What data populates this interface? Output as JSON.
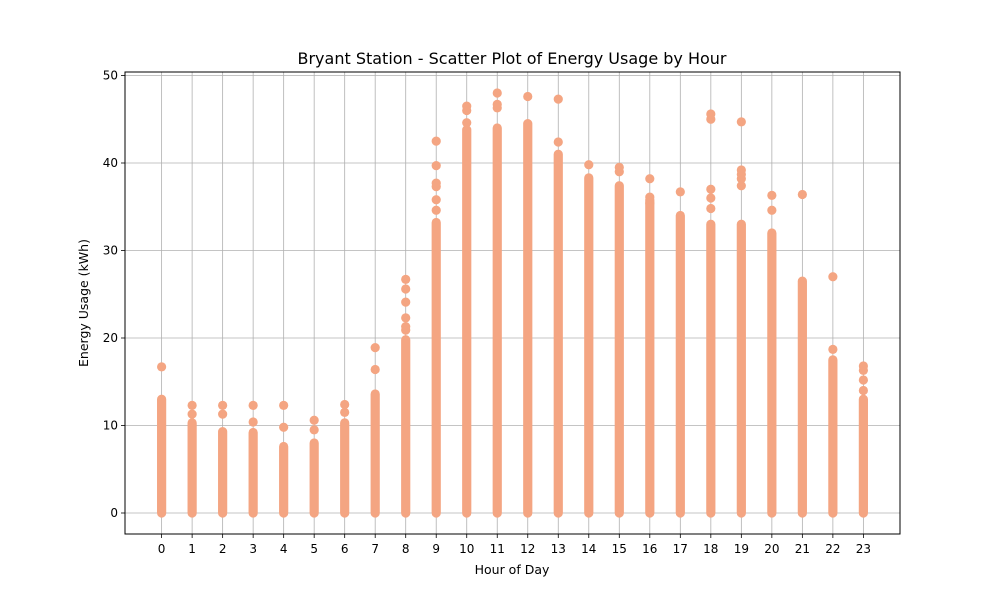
{
  "chart_data": {
    "type": "scatter",
    "title": "Bryant Station - Scatter Plot of Energy Usage by Hour",
    "xlabel": "Hour of Day",
    "ylabel": "Energy Usage (kWh)",
    "xlim": [
      -1.2,
      24.2
    ],
    "ylim": [
      -2.4,
      50.4
    ],
    "grid": true,
    "marker_color": "#f4a582",
    "x_ticks": [
      "0",
      "1",
      "2",
      "3",
      "4",
      "5",
      "6",
      "7",
      "8",
      "9",
      "10",
      "11",
      "12",
      "13",
      "14",
      "15",
      "16",
      "17",
      "18",
      "19",
      "20",
      "21",
      "22",
      "23"
    ],
    "y_ticks": [
      "0",
      "10",
      "20",
      "30",
      "40",
      "50"
    ],
    "series": [
      {
        "hourly_max": [
          16.7,
          12.3,
          12.3,
          12.3,
          12.3,
          10.6,
          12.4,
          18.9,
          26.7,
          42.5,
          46.5,
          48.0,
          47.6,
          47.3,
          39.8,
          39.5,
          38.2,
          36.7,
          45.6,
          44.7,
          36.3,
          36.4,
          27.0,
          16.8
        ],
        "hourly_dense_top": [
          13.0,
          10.3,
          9.3,
          9.2,
          7.6,
          8.0,
          10.3,
          13.6,
          19.8,
          33.2,
          43.8,
          44.0,
          44.5,
          41.0,
          38.3,
          37.4,
          35.8,
          34.0,
          33.0,
          33.0,
          32.0,
          26.5,
          17.5,
          13.0
        ],
        "hourly_outliers": [
          [],
          [
            11.3
          ],
          [
            11.3
          ],
          [
            10.4
          ],
          [
            9.8
          ],
          [
            9.5
          ],
          [
            11.5
          ],
          [
            16.4
          ],
          [
            20.9,
            21.3,
            22.3,
            24.1,
            25.6
          ],
          [
            34.6,
            35.8,
            37.3,
            37.7,
            39.7
          ],
          [
            44.6,
            46.0
          ],
          [
            46.3,
            46.7
          ],
          [],
          [
            42.4
          ],
          [],
          [
            39.0
          ],
          [
            35.4,
            36.1
          ],
          [],
          [
            34.8,
            36.0,
            37.0,
            45.0
          ],
          [
            37.4,
            38.2,
            38.7,
            39.2
          ],
          [
            34.6
          ],
          [],
          [
            18.7
          ],
          [
            14.0,
            15.2,
            16.3
          ]
        ]
      }
    ]
  }
}
